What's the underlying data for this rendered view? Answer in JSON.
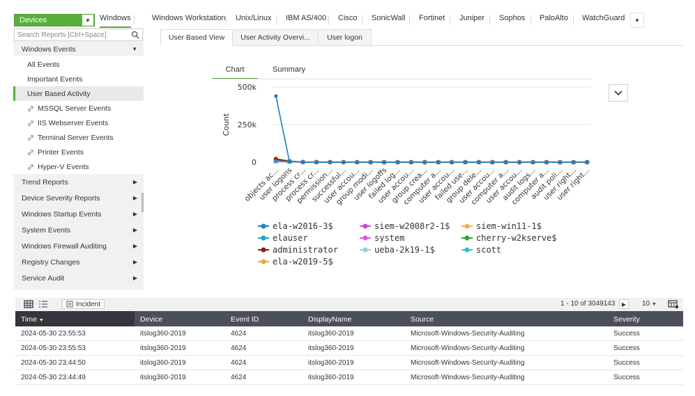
{
  "device_selector": {
    "label": "Devices"
  },
  "device_tabs": [
    "Windows",
    "Windows Workstation",
    "Unix/Linux",
    "IBM AS/400",
    "Cisco",
    "SonicWall",
    "Fortinet",
    "Juniper",
    "Sophos",
    "PaloAlto",
    "WatchGuard"
  ],
  "sidebar": {
    "search_placeholder": "Search Reports [Ctrl+Space]",
    "section_open": "Windows Events",
    "sub_items": [
      "All Events",
      "Important Events",
      "User Based Activity",
      "MSSQL Server Events",
      "IIS Webserver Events",
      "Terminal Server Events",
      "Printer Events",
      "Hyper-V Events"
    ],
    "sections": [
      "Trend Reports",
      "Device Severity Reports",
      "Windows Startup Events",
      "System Events",
      "Windows Firewall Auditing",
      "Registry Changes",
      "Service Audit"
    ]
  },
  "view_tabs": [
    "User Based View",
    "User Activity Overvi...",
    "User logon"
  ],
  "chart_tabs": [
    "Chart",
    "Summary"
  ],
  "chart_data": {
    "type": "line",
    "ylabel": "Count",
    "ylim": [
      0,
      500000
    ],
    "yticks": [
      "500k",
      "250k",
      "0"
    ],
    "categories": [
      "objects ac...",
      "user logons",
      "process cr...",
      "process cr...",
      "permission...",
      "successful...",
      "user accou...",
      "group modi...",
      "user logoffs",
      "failed log...",
      "user accou...",
      "group crea...",
      "computer a...",
      "user accou...",
      "failed use...",
      "group dele...",
      "user accou...",
      "computer a...",
      "user accou...",
      "audit logs...",
      "computer a...",
      "audit poli...",
      "user right...",
      "user right..."
    ],
    "series": [
      {
        "name": "ela-w2016-3$",
        "color": "#1f7fc4",
        "values": [
          440000,
          4000,
          800,
          500,
          400,
          300,
          200,
          200,
          150,
          150,
          120,
          100,
          100,
          100,
          90,
          80,
          70,
          60,
          50,
          50,
          40,
          30,
          20,
          10
        ]
      },
      {
        "name": "elauser",
        "color": "#17a2c9",
        "values": [
          8000,
          3000,
          600,
          400,
          300,
          200,
          150,
          150,
          120,
          100,
          90,
          80,
          70,
          60,
          50,
          40,
          40,
          30,
          30,
          20,
          20,
          10,
          10,
          10
        ]
      },
      {
        "name": "administrator",
        "color": "#8b1a1a",
        "values": [
          20000,
          6000,
          900,
          500,
          300,
          200,
          150,
          120,
          100,
          90,
          80,
          70,
          60,
          50,
          40,
          30,
          30,
          20,
          20,
          20,
          10,
          10,
          10,
          10
        ]
      },
      {
        "name": "ela-w2019-5$",
        "color": "#f5a623",
        "values": [
          25000,
          7000,
          1000,
          600,
          400,
          250,
          200,
          150,
          120,
          100,
          90,
          80,
          70,
          60,
          50,
          40,
          30,
          30,
          20,
          20,
          10,
          10,
          10,
          10
        ]
      },
      {
        "name": "siem-w2008r2-1$",
        "color": "#c947c9",
        "values": [
          12000,
          5000,
          700,
          400,
          300,
          200,
          150,
          120,
          100,
          90,
          80,
          70,
          60,
          50,
          40,
          30,
          30,
          20,
          20,
          10,
          10,
          10,
          10,
          10
        ]
      },
      {
        "name": "system",
        "color": "#e552e5",
        "values": [
          9000,
          3500,
          500,
          300,
          200,
          150,
          120,
          100,
          90,
          80,
          70,
          60,
          50,
          40,
          30,
          30,
          20,
          20,
          10,
          10,
          10,
          10,
          10,
          10
        ]
      },
      {
        "name": "ueba-2k19-1$",
        "color": "#9ac8ea",
        "values": [
          7000,
          2500,
          400,
          300,
          200,
          150,
          120,
          100,
          90,
          80,
          70,
          60,
          50,
          40,
          30,
          30,
          20,
          20,
          10,
          10,
          10,
          10,
          10,
          10
        ]
      },
      {
        "name": "siem-win11-1$",
        "color": "#f0ad4e",
        "values": [
          15000,
          4500,
          800,
          500,
          300,
          200,
          150,
          120,
          100,
          90,
          80,
          70,
          60,
          50,
          40,
          30,
          30,
          20,
          20,
          10,
          10,
          10,
          10,
          10
        ]
      },
      {
        "name": "cherry-w2kserve$",
        "color": "#2e9e3c",
        "values": [
          6000,
          2000,
          400,
          300,
          200,
          150,
          120,
          100,
          90,
          80,
          70,
          60,
          50,
          40,
          30,
          30,
          20,
          20,
          10,
          10,
          10,
          10,
          10,
          10
        ]
      },
      {
        "name": "scott",
        "color": "#26c6c6",
        "values": [
          5000,
          1800,
          300,
          200,
          150,
          120,
          100,
          90,
          80,
          70,
          60,
          50,
          40,
          30,
          30,
          20,
          20,
          10,
          10,
          10,
          10,
          10,
          10,
          10
        ]
      }
    ]
  },
  "toolbar": {
    "incident_label": "Incident",
    "pager": "1 - 10 of 3049143",
    "page_size": "10"
  },
  "table": {
    "columns": [
      "Time",
      "Device",
      "Event ID",
      "DisplayName",
      "Source",
      "Severity"
    ],
    "rows": [
      [
        "2024-05-30 23:55:53",
        "itslog360-2019",
        "4624",
        "itslog360-2019",
        "Microsoft-Windows-Security-Auditing",
        "Success"
      ],
      [
        "2024-05-30 23:55:53",
        "itslog360-2019",
        "4624",
        "itslog360-2019",
        "Microsoft-Windows-Security-Auditing",
        "Success"
      ],
      [
        "2024-05-30 23:44:50",
        "itslog360-2019",
        "4624",
        "itslog360-2019",
        "Microsoft-Windows-Security-Auditing",
        "Success"
      ],
      [
        "2024-05-30 23:44:49",
        "itslog360-2019",
        "4624",
        "itslog360-2019",
        "Microsoft-Windows-Security-Auditing",
        "Success"
      ]
    ]
  },
  "colors": {
    "accent": "#5aae3c",
    "table_header": "#4b4f56"
  }
}
